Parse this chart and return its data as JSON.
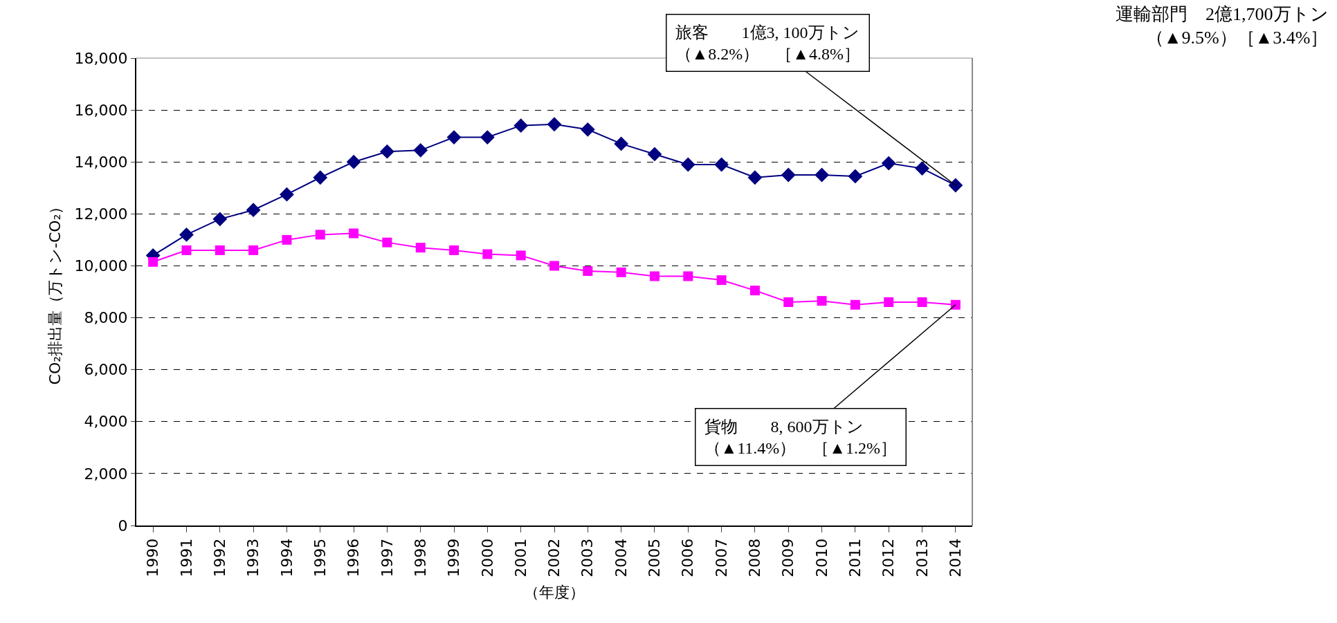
{
  "chart_data": {
    "type": "line",
    "title": "運輸部門　2億1,700万トン",
    "subtitle": "（▲9.5%）［▲3.4%］",
    "xlabel": "（年度）",
    "ylabel": "CO₂排出量（万トン-CO₂）",
    "categories": [
      "1990",
      "1991",
      "1992",
      "1993",
      "1994",
      "1995",
      "1996",
      "1997",
      "1998",
      "1999",
      "2000",
      "2001",
      "2002",
      "2003",
      "2004",
      "2005",
      "2006",
      "2007",
      "2008",
      "2009",
      "2010",
      "2011",
      "2012",
      "2013",
      "2014"
    ],
    "series": [
      {
        "color": "#000080",
        "marker": "diamond",
        "values": [
          10400,
          11200,
          11800,
          12150,
          12750,
          13400,
          14000,
          14400,
          14450,
          14950,
          14950,
          15400,
          15450,
          15250,
          14700,
          14300,
          13900,
          13900,
          13400,
          13500,
          13500,
          13450,
          13950,
          13750,
          13100
        ]
      },
      {
        "color": "#ff00ff",
        "marker": "square",
        "values": [
          10150,
          10600,
          10600,
          10600,
          11000,
          11200,
          11250,
          10900,
          10700,
          10600,
          10450,
          10400,
          10000,
          9800,
          9750,
          9600,
          9600,
          9450,
          9050,
          8600,
          8650,
          8500,
          8600,
          8600,
          8500
        ]
      }
    ],
    "annotations": [
      "旅客　　1億3, 100万トン",
      {
        "text": "（▲8.2%）　［▲4.8%］",
        "x": "2014",
        "y": 13100
      },
      {
        "text": "貨物　　8, 600万トン",
        "x": "2014",
        "y": 8500
      },
      "（▲11.4%）　［▲1.2%］"
    ],
    "ylim": [
      0,
      18000
    ],
    "yticks": [
      {
        "value": 0,
        "label": "0"
      },
      {
        "value": 2000,
        "label": "2,000"
      },
      {
        "value": 4000,
        "label": "4,000"
      },
      {
        "value": 6000,
        "label": "6,000"
      },
      {
        "value": 8000,
        "label": "8,000"
      },
      {
        "value": 10000,
        "label": "10,000"
      },
      {
        "value": 12000,
        "label": "12,000"
      },
      {
        "value": 14000,
        "label": "14,000"
      },
      {
        "value": 16000,
        "label": "16,000"
      },
      {
        "value": 18000,
        "label": "18,000"
      }
    ],
    "grid": "y"
  }
}
